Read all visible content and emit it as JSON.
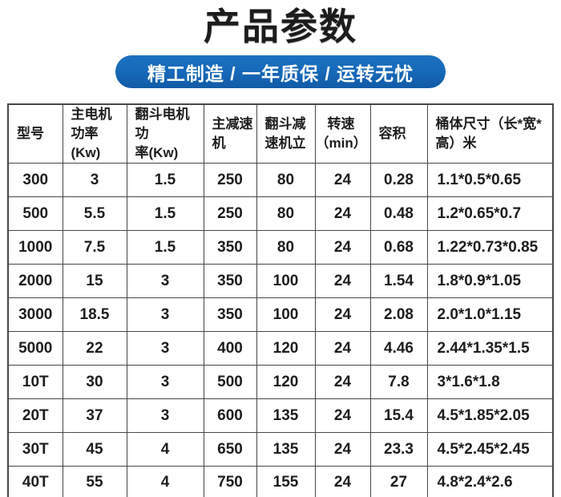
{
  "page": {
    "title": "产品参数",
    "banner_text": "精工制造 / 一年质保 / 运转无忧"
  },
  "colors": {
    "banner_blue": "#1667b7",
    "table_border": "#474747",
    "title_black": "#1c1c1c",
    "banner_text_white": "#ffffff"
  },
  "table": {
    "columns": [
      "型号",
      "主电机\n功率(Kw)",
      "翻斗电机功\n率(Kw)",
      "主减速\n机",
      "翻斗减\n速机立",
      "转速\n（min）",
      "容积",
      "桶体尺寸（长*宽*\n高）米"
    ],
    "center_columns": [
      5
    ],
    "rows": [
      [
        "300",
        "3",
        "1.5",
        "250",
        "80",
        "24",
        "0.28",
        "1.1*0.5*0.65"
      ],
      [
        "500",
        "5.5",
        "1.5",
        "250",
        "80",
        "24",
        "0.48",
        "1.2*0.65*0.7"
      ],
      [
        "1000",
        "7.5",
        "1.5",
        "350",
        "80",
        "24",
        "0.68",
        "1.22*0.73*0.85"
      ],
      [
        "2000",
        "15",
        "3",
        "350",
        "100",
        "24",
        "1.54",
        "1.8*0.9*1.05"
      ],
      [
        "3000",
        "18.5",
        "3",
        "350",
        "100",
        "24",
        "2.08",
        "2.0*1.0*1.15"
      ],
      [
        "5000",
        "22",
        "3",
        "400",
        "120",
        "24",
        "4.46",
        "2.44*1.35*1.5"
      ],
      [
        "10T",
        "30",
        "3",
        "500",
        "120",
        "24",
        "7.8",
        "3*1.6*1.8"
      ],
      [
        "20T",
        "37",
        "3",
        "600",
        "135",
        "24",
        "15.4",
        "4.5*1.85*2.05"
      ],
      [
        "30T",
        "45",
        "4",
        "650",
        "135",
        "24",
        "23.3",
        "4.5*2.45*2.45"
      ],
      [
        "40T",
        "55",
        "4",
        "750",
        "155",
        "24",
        "27",
        "4.8*2.4*2.6"
      ]
    ]
  }
}
